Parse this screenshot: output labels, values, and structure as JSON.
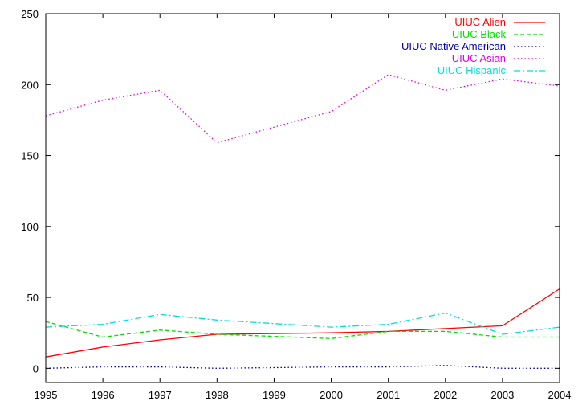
{
  "chart_data": {
    "type": "line",
    "title": "",
    "xlabel": "",
    "ylabel": "",
    "x": [
      1995,
      1996,
      1997,
      1998,
      1999,
      2000,
      2001,
      2002,
      2003,
      2004
    ],
    "xlim": [
      1995,
      2004
    ],
    "ylim": [
      -10,
      250
    ],
    "x_ticks": [
      "1995",
      "1996",
      "1997",
      "1998",
      "1999",
      "2000",
      "2001",
      "2002",
      "2003",
      "2004"
    ],
    "y_ticks": [
      0,
      50,
      100,
      150,
      200,
      250
    ],
    "y_tick_labels": [
      "0",
      "50",
      "100",
      "150",
      "200",
      "250"
    ],
    "grid": false,
    "legend_position": "top-right",
    "series": [
      {
        "name": "UIUC Alien",
        "color": "#ff0000",
        "style": "solid",
        "values": [
          8,
          15,
          20,
          24,
          24.5,
          25,
          26,
          28,
          30,
          56
        ]
      },
      {
        "name": "UIUC Black",
        "color": "#00e000",
        "style": "dashed",
        "values": [
          33,
          22,
          27,
          24,
          22.5,
          21,
          26,
          26,
          22,
          22
        ]
      },
      {
        "name": "UIUC Native American",
        "color": "#0000a0",
        "style": "dotted",
        "values": [
          0,
          1,
          1,
          0,
          0.5,
          1,
          1,
          2,
          0,
          0
        ]
      },
      {
        "name": "UIUC Asian",
        "color": "#e000e0",
        "style": "dotted",
        "values": [
          178,
          189,
          196,
          159,
          170,
          181,
          207,
          196,
          204,
          199
        ]
      },
      {
        "name": "UIUC Hispanic",
        "color": "#00e0e0",
        "style": "dashdot",
        "values": [
          29,
          31,
          38,
          34,
          31.5,
          29,
          31,
          39,
          24,
          29
        ]
      }
    ]
  }
}
